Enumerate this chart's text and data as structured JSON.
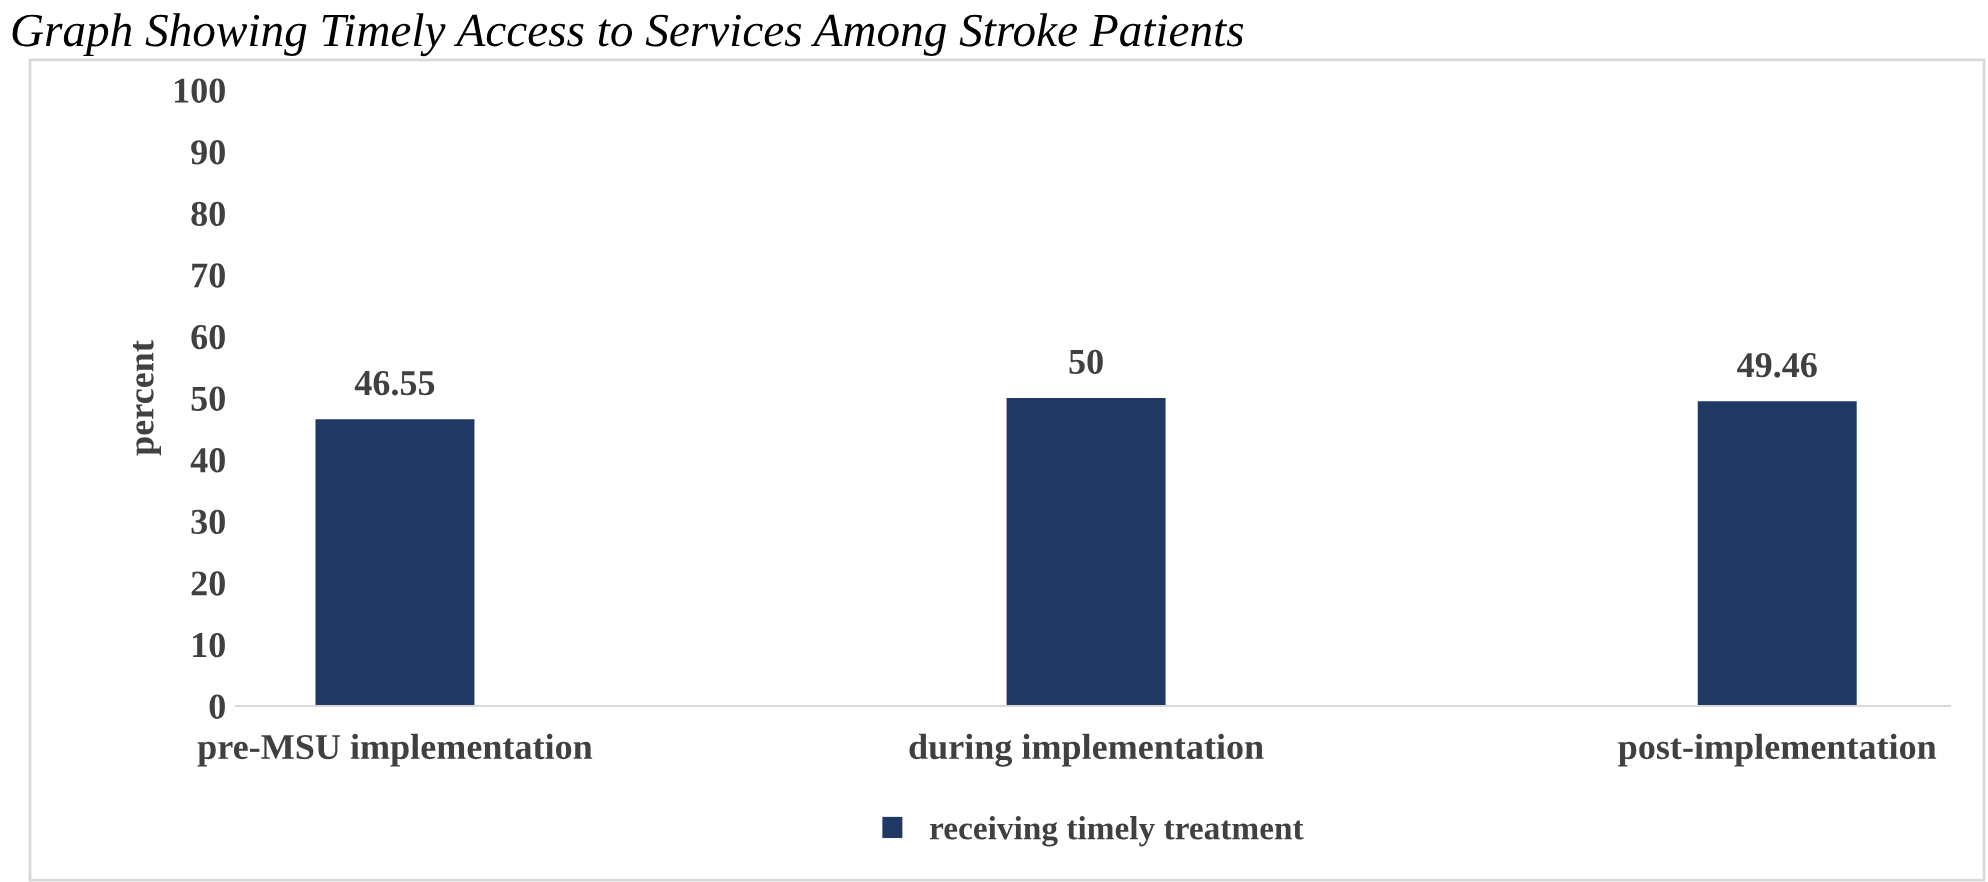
{
  "chart_data": {
    "type": "bar",
    "title": "Graph Showing Timely Access to Services Among Stroke Patients",
    "ylabel": "percent",
    "categories": [
      "pre-MSU implementation",
      "during implementation",
      "post-implementation"
    ],
    "series": [
      {
        "name": "receiving timely treatment",
        "color": "#1f3864",
        "values": [
          46.55,
          50,
          49.46
        ]
      }
    ],
    "ylim": [
      0,
      100
    ],
    "yticks": [
      0,
      10,
      20,
      30,
      40,
      50,
      60,
      70,
      80,
      90,
      100
    ],
    "grid": false,
    "legend": "bottom",
    "data_labels": true
  }
}
